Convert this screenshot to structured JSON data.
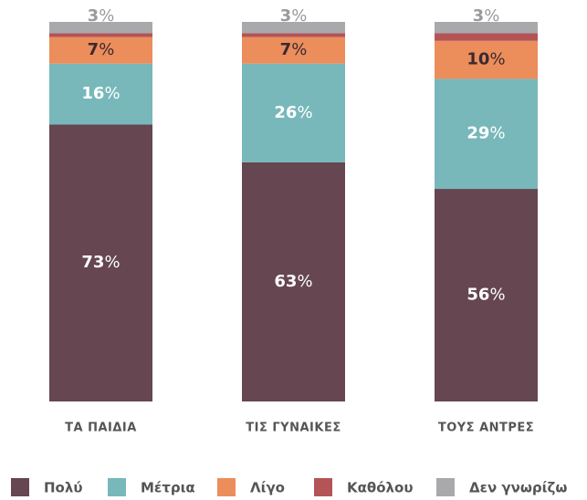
{
  "chart_data": {
    "type": "stacked_bar",
    "categories": [
      "ΤΑ ΠΑΙΔΙΑ",
      "ΤΙΣ ΓΥΝΑΙΚΕΣ",
      "ΤΟΥΣ ΑΝΤΡΕΣ"
    ],
    "ylim": [
      0,
      100
    ],
    "series": [
      {
        "name": "Πολύ",
        "color": "#654651",
        "values": [
          73,
          63,
          56
        ],
        "value_labels": [
          "73%",
          "63%",
          "56%"
        ]
      },
      {
        "name": "Μέτρια",
        "color": "#78b8bb",
        "values": [
          16,
          26,
          29
        ],
        "value_labels": [
          "16%",
          "26%",
          "29%"
        ]
      },
      {
        "name": "Λίγο",
        "color": "#ec8d5c",
        "values": [
          7,
          7,
          10
        ],
        "value_labels": [
          "7%",
          "7%",
          "10%"
        ]
      },
      {
        "name": "Καθόλου",
        "color": "#b45457",
        "values": [
          1,
          1,
          2
        ]
      },
      {
        "name": "Δεν γνωρίζω",
        "color": "#a9a9ac",
        "values": [
          3,
          3,
          3
        ],
        "value_labels": [
          "3%",
          "3%",
          "3%"
        ]
      }
    ]
  }
}
